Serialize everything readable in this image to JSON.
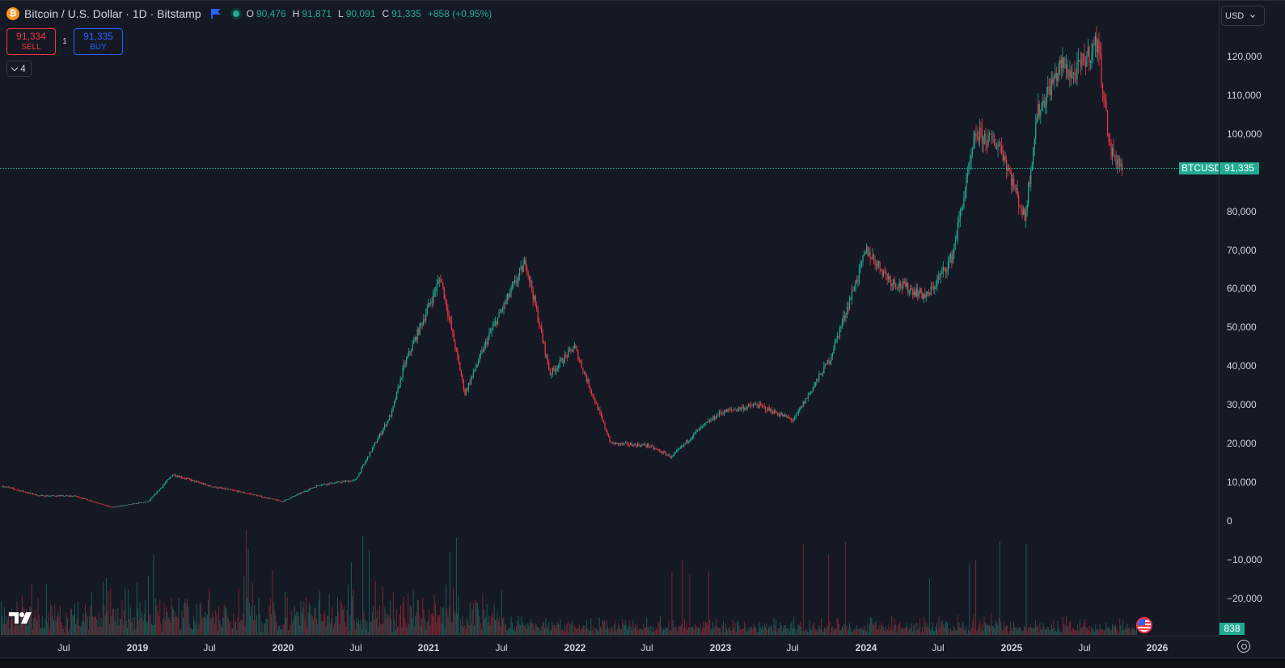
{
  "header": {
    "coin_symbol": "₿",
    "title": "Bitcoin / U.S. Dollar · 1D · Bitstamp",
    "ohlc": [
      {
        "key": "O",
        "value": "90,476"
      },
      {
        "key": "H",
        "value": "91,871"
      },
      {
        "key": "L",
        "value": "90,091"
      },
      {
        "key": "C",
        "value": "91,335"
      }
    ],
    "change": "+858 (+0.95%)"
  },
  "trade": {
    "sell_price": "91,334",
    "sell_label": "SELL",
    "quantity": "1",
    "buy_price": "91,335",
    "buy_label": "BUY"
  },
  "indicators_toggle": {
    "count": "4"
  },
  "price_axis": {
    "currency": "USD",
    "labels": [
      "120,000",
      "110,000",
      "100,000",
      "80,000",
      "70,000",
      "60,000",
      "50,000",
      "40,000",
      "30,000",
      "20,000",
      "10,000",
      "0",
      "−10,000",
      "−20,000"
    ]
  },
  "last_price": {
    "symbol": "BTCUSD",
    "price": "91,335"
  },
  "volume": {
    "last": "838"
  },
  "time_axis": {
    "labels": [
      {
        "text": "Jul",
        "year": false
      },
      {
        "text": "2019",
        "year": true
      },
      {
        "text": "Jul",
        "year": false
      },
      {
        "text": "2020",
        "year": true
      },
      {
        "text": "Jul",
        "year": false
      },
      {
        "text": "2021",
        "year": true
      },
      {
        "text": "Jul",
        "year": false
      },
      {
        "text": "2022",
        "year": true
      },
      {
        "text": "Jul",
        "year": false
      },
      {
        "text": "2023",
        "year": true
      },
      {
        "text": "Jul",
        "year": false
      },
      {
        "text": "2024",
        "year": true
      },
      {
        "text": "Jul",
        "year": false
      },
      {
        "text": "2025",
        "year": true
      },
      {
        "text": "Jul",
        "year": false
      },
      {
        "text": "2026",
        "year": true
      }
    ]
  },
  "colors": {
    "up": "#22ab94",
    "down": "#f23645",
    "background": "#151924",
    "accent_blue": "#2962ff"
  },
  "chart_data": {
    "type": "line",
    "series": [
      {
        "x": [
          "2018-04",
          "2018-07",
          "2018-10",
          "2019-01",
          "2019-04",
          "2019-06",
          "2019-09",
          "2019-12",
          "2020-03",
          "2020-06",
          "2020-09",
          "2020-12",
          "2021-01",
          "2021-04",
          "2021-06",
          "2021-08",
          "2021-11",
          "2022-01",
          "2022-03",
          "2022-06",
          "2022-09",
          "2022-11",
          "2023-01",
          "2023-03",
          "2023-06",
          "2023-09",
          "2023-12",
          "2024-03",
          "2024-05",
          "2024-08",
          "2024-10",
          "2024-12",
          "2025-02",
          "2025-04",
          "2025-05",
          "2025-07",
          "2025-08",
          "2025-10",
          "2025-11",
          "2025-12"
        ],
        "values": [
          9000,
          6500,
          6400,
          3500,
          5000,
          12000,
          9000,
          7200,
          5000,
          9300,
          10500,
          28000,
          40000,
          63000,
          33000,
          48000,
          67000,
          38000,
          45000,
          20000,
          19500,
          16500,
          23000,
          28000,
          30000,
          26000,
          42000,
          70000,
          62000,
          58000,
          68000,
          100000,
          97000,
          78000,
          105000,
          118000,
          115000,
          124000,
          96000,
          91335
        ]
      }
    ],
    "volume_last": 838,
    "ylim": [
      -20000,
      125000
    ],
    "grid": false
  }
}
